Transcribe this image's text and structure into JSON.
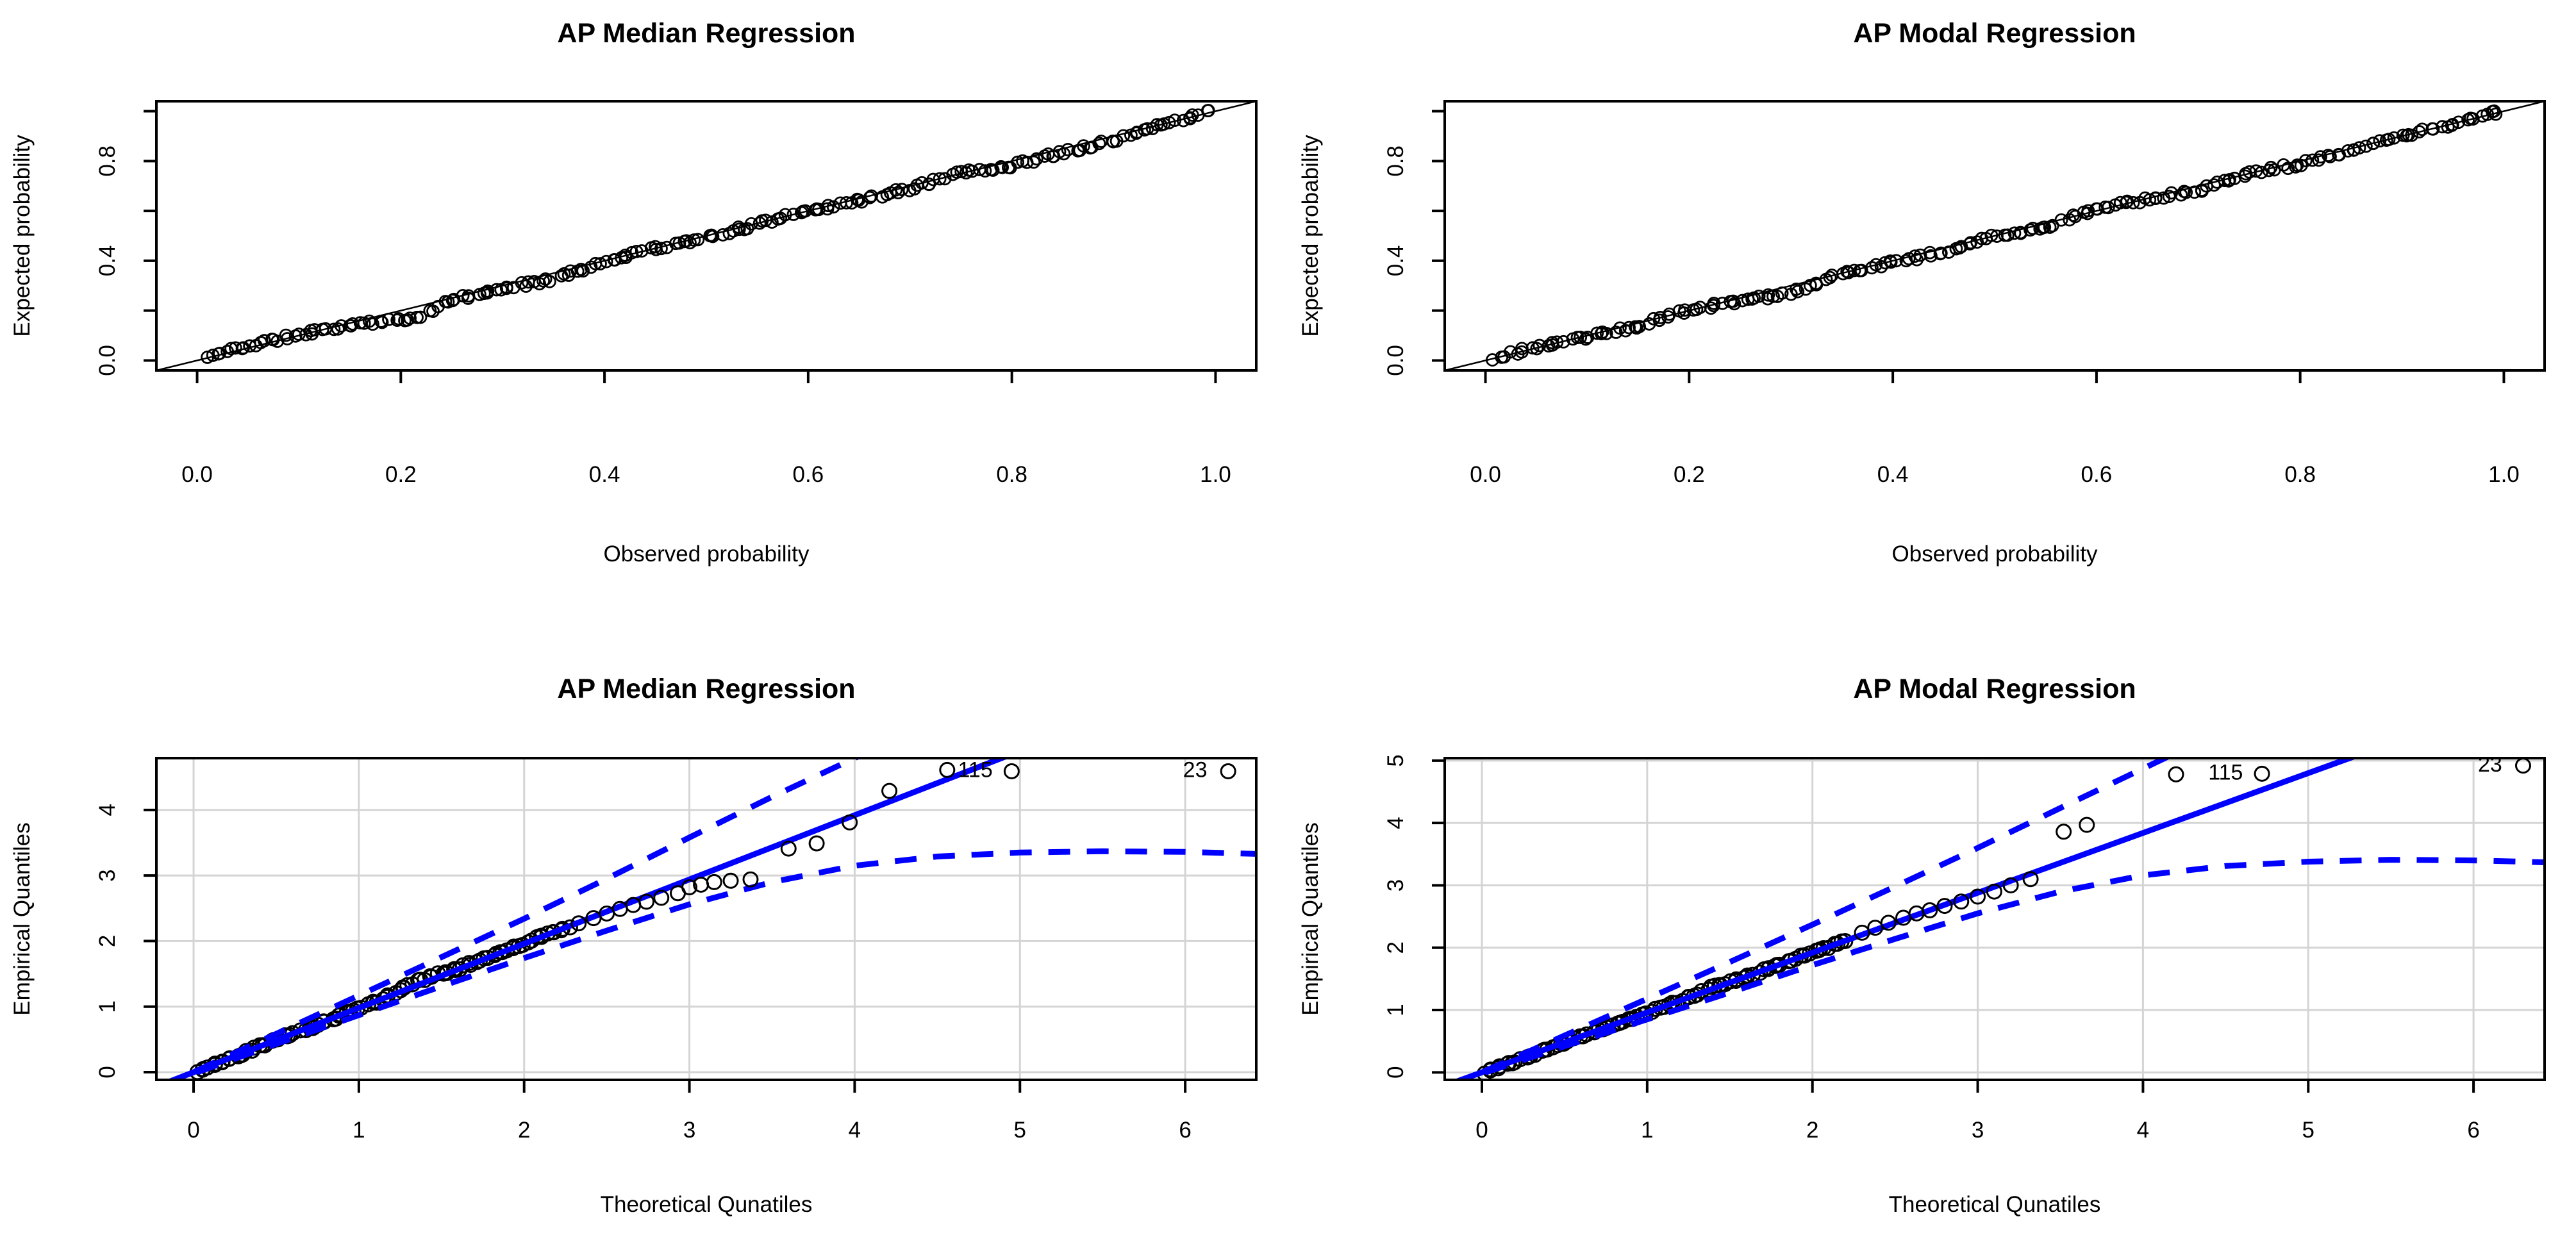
{
  "figure": {
    "background": "#ffffff",
    "description": "2x2 panel of R base-graphics diagnostic plots: top row P-P plots, bottom row Q-Q plots with confidence envelopes"
  },
  "colors": {
    "black": "#000000",
    "accent_blue": "#0000ff",
    "grid_gray": "#d4d4d4",
    "background": "#ffffff"
  },
  "chart_data": [
    {
      "id": "pp-median",
      "kind": "pp",
      "type": "scatter",
      "title": "AP Median Regression",
      "xlabel": "Observed probability",
      "ylabel": "Expected probability",
      "xlim": [
        -0.04,
        1.04
      ],
      "ylim": [
        -0.04,
        1.04
      ],
      "grid": false,
      "xticks": [
        {
          "v": 0,
          "label": "0.0"
        },
        {
          "v": 0.2,
          "label": "0.2"
        },
        {
          "v": 0.4,
          "label": "0.4"
        },
        {
          "v": 0.6,
          "label": "0.6"
        },
        {
          "v": 0.8,
          "label": "0.8"
        },
        {
          "v": 1,
          "label": "1.0"
        }
      ],
      "yticks": [
        {
          "v": 0,
          "label": "0.0"
        },
        {
          "v": 0.2,
          "label": ""
        },
        {
          "v": 0.4,
          "label": "0.4"
        },
        {
          "v": 0.6,
          "label": ""
        },
        {
          "v": 0.8,
          "label": "0.8"
        },
        {
          "v": 1,
          "label": ""
        }
      ],
      "ref_line": {
        "pts": [
          [
            -0.04,
            -0.04
          ],
          [
            1.04,
            1.04
          ]
        ],
        "color": "#000000",
        "width": 2.5
      },
      "marker": {
        "r": 9,
        "stroke": 2.8
      },
      "band": {
        "n": 210,
        "seed": 11,
        "jitter_y": 0.009,
        "anchors": [
          [
            0.01,
            0.012
          ],
          [
            0.04,
            0.05
          ],
          [
            0.09,
            0.095
          ],
          [
            0.13,
            0.13
          ],
          [
            0.17,
            0.152
          ],
          [
            0.21,
            0.163
          ],
          [
            0.25,
            0.24
          ],
          [
            0.3,
            0.29
          ],
          [
            0.35,
            0.327
          ],
          [
            0.4,
            0.397
          ],
          [
            0.45,
            0.452
          ],
          [
            0.5,
            0.49
          ],
          [
            0.55,
            0.547
          ],
          [
            0.6,
            0.603
          ],
          [
            0.65,
            0.64
          ],
          [
            0.7,
            0.69
          ],
          [
            0.75,
            0.752
          ],
          [
            0.8,
            0.782
          ],
          [
            0.85,
            0.835
          ],
          [
            0.9,
            0.885
          ],
          [
            0.95,
            0.947
          ],
          [
            0.995,
            0.998
          ]
        ]
      },
      "points": [],
      "lines": [],
      "labeled_points": []
    },
    {
      "id": "pp-modal",
      "kind": "pp",
      "type": "scatter",
      "title": "AP Modal Regression",
      "xlabel": "Observed probability",
      "ylabel": "Expected probability",
      "xlim": [
        -0.04,
        1.04
      ],
      "ylim": [
        -0.04,
        1.04
      ],
      "grid": false,
      "xticks": [
        {
          "v": 0,
          "label": "0.0"
        },
        {
          "v": 0.2,
          "label": "0.2"
        },
        {
          "v": 0.4,
          "label": "0.4"
        },
        {
          "v": 0.6,
          "label": "0.6"
        },
        {
          "v": 0.8,
          "label": "0.8"
        },
        {
          "v": 1,
          "label": "1.0"
        }
      ],
      "yticks": [
        {
          "v": 0,
          "label": "0.0"
        },
        {
          "v": 0.2,
          "label": ""
        },
        {
          "v": 0.4,
          "label": "0.4"
        },
        {
          "v": 0.6,
          "label": ""
        },
        {
          "v": 0.8,
          "label": "0.8"
        },
        {
          "v": 1,
          "label": ""
        }
      ],
      "ref_line": {
        "pts": [
          [
            -0.04,
            -0.04
          ],
          [
            1.04,
            1.04
          ]
        ],
        "color": "#000000",
        "width": 2.5
      },
      "marker": {
        "r": 9,
        "stroke": 2.8
      },
      "band": {
        "n": 205,
        "seed": 23,
        "jitter_y": 0.009,
        "anchors": [
          [
            0.01,
            0.01
          ],
          [
            0.05,
            0.055
          ],
          [
            0.1,
            0.092
          ],
          [
            0.15,
            0.14
          ],
          [
            0.2,
            0.205
          ],
          [
            0.25,
            0.237
          ],
          [
            0.3,
            0.27
          ],
          [
            0.35,
            0.352
          ],
          [
            0.4,
            0.392
          ],
          [
            0.45,
            0.437
          ],
          [
            0.5,
            0.5
          ],
          [
            0.55,
            0.537
          ],
          [
            0.6,
            0.607
          ],
          [
            0.65,
            0.648
          ],
          [
            0.7,
            0.682
          ],
          [
            0.75,
            0.752
          ],
          [
            0.8,
            0.787
          ],
          [
            0.85,
            0.842
          ],
          [
            0.9,
            0.9
          ],
          [
            0.95,
            0.95
          ],
          [
            0.995,
            0.997
          ]
        ]
      },
      "points": [],
      "lines": [],
      "labeled_points": []
    },
    {
      "id": "qq-median",
      "kind": "qq",
      "type": "scatter",
      "title": "AP Median Regression",
      "xlabel": "Theoretical Qunatiles",
      "ylabel": "Empirical Quantiles",
      "xlim": [
        -0.225,
        6.43
      ],
      "ylim": [
        -0.117,
        4.79
      ],
      "grid": true,
      "xticks": [
        {
          "v": 0,
          "label": "0"
        },
        {
          "v": 1,
          "label": "1"
        },
        {
          "v": 2,
          "label": "2"
        },
        {
          "v": 3,
          "label": "3"
        },
        {
          "v": 4,
          "label": "4"
        },
        {
          "v": 5,
          "label": "5"
        },
        {
          "v": 6,
          "label": "6"
        }
      ],
      "yticks": [
        {
          "v": 0,
          "label": "0"
        },
        {
          "v": 1,
          "label": "1"
        },
        {
          "v": 2,
          "label": "2"
        },
        {
          "v": 3,
          "label": "3"
        },
        {
          "v": 4,
          "label": "4"
        }
      ],
      "marker": {
        "r": 11,
        "stroke": 3
      },
      "band": {
        "n": 95,
        "seed": 42,
        "jitter_y": 0.022,
        "anchors": [
          [
            0.02,
            0.0
          ],
          [
            0.25,
            0.24
          ],
          [
            0.5,
            0.5
          ],
          [
            0.75,
            0.72
          ],
          [
            1.0,
            0.97
          ],
          [
            1.15,
            1.12
          ],
          [
            1.3,
            1.33
          ],
          [
            1.45,
            1.47
          ],
          [
            1.6,
            1.58
          ],
          [
            1.8,
            1.77
          ],
          [
            2.0,
            1.97
          ],
          [
            2.26,
            2.21
          ]
        ]
      },
      "points": [
        [
          2.33,
          2.27
        ],
        [
          2.42,
          2.35
        ],
        [
          2.5,
          2.42
        ],
        [
          2.58,
          2.49
        ],
        [
          2.66,
          2.55
        ],
        [
          2.74,
          2.6
        ],
        [
          2.83,
          2.66
        ],
        [
          2.93,
          2.73
        ],
        [
          3.0,
          2.82
        ],
        [
          3.07,
          2.86
        ],
        [
          3.15,
          2.9
        ],
        [
          3.25,
          2.92
        ],
        [
          3.37,
          2.94
        ],
        [
          3.6,
          3.41
        ],
        [
          3.77,
          3.49
        ],
        [
          3.97,
          3.81
        ],
        [
          4.21,
          4.29
        ],
        [
          4.56,
          4.61
        ]
      ],
      "lines": [
        {
          "style": "dashed",
          "color": "#0000ff",
          "width": 9,
          "pts": [
            [
              -0.2,
              -0.23
            ],
            [
              0,
              0.0
            ],
            [
              0.5,
              0.585
            ],
            [
              1,
              1.17
            ],
            [
              1.5,
              1.755
            ],
            [
              2,
              2.34
            ],
            [
              2.5,
              2.95
            ],
            [
              3,
              3.58
            ],
            [
              3.5,
              4.2
            ],
            [
              4.05,
              4.85
            ]
          ]
        },
        {
          "style": "dashed",
          "color": "#0000ff",
          "width": 9,
          "pts": [
            [
              -0.2,
              -0.19
            ],
            [
              0,
              -0.02
            ],
            [
              0.5,
              0.43
            ],
            [
              1,
              0.87
            ],
            [
              1.5,
              1.31
            ],
            [
              2,
              1.74
            ],
            [
              2.5,
              2.16
            ],
            [
              3,
              2.56
            ],
            [
              3.5,
              2.9
            ],
            [
              4,
              3.15
            ],
            [
              4.5,
              3.29
            ],
            [
              5,
              3.35
            ],
            [
              5.5,
              3.37
            ],
            [
              6,
              3.36
            ],
            [
              6.43,
              3.33
            ]
          ]
        },
        {
          "style": "solid",
          "color": "#0000ff",
          "width": 9,
          "pts": [
            [
              -0.225,
              -0.221
            ],
            [
              4.95,
              4.851
            ]
          ]
        }
      ],
      "labeled_points": [
        {
          "label": "115",
          "tx": 4.73,
          "ty": 4.62,
          "cx": 4.95,
          "cy": 4.59
        },
        {
          "label": "23",
          "tx": 6.06,
          "ty": 4.62,
          "cx": 6.26,
          "cy": 4.59
        }
      ]
    },
    {
      "id": "qq-modal",
      "kind": "qq",
      "type": "scatter",
      "title": "AP Modal Regression",
      "xlabel": "Theoretical Qunatiles",
      "ylabel": "Empirical Quantiles",
      "xlim": [
        -0.225,
        6.43
      ],
      "ylim": [
        -0.12,
        5.04
      ],
      "grid": true,
      "xticks": [
        {
          "v": 0,
          "label": "0"
        },
        {
          "v": 1,
          "label": "1"
        },
        {
          "v": 2,
          "label": "2"
        },
        {
          "v": 3,
          "label": "3"
        },
        {
          "v": 4,
          "label": "4"
        },
        {
          "v": 5,
          "label": "5"
        },
        {
          "v": 6,
          "label": "6"
        }
      ],
      "yticks": [
        {
          "v": 0,
          "label": "0"
        },
        {
          "v": 1,
          "label": "1"
        },
        {
          "v": 2,
          "label": "2"
        },
        {
          "v": 3,
          "label": "3"
        },
        {
          "v": 4,
          "label": "4"
        },
        {
          "v": 5,
          "label": "5"
        }
      ],
      "marker": {
        "r": 11,
        "stroke": 3
      },
      "band": {
        "n": 92,
        "seed": 77,
        "jitter_y": 0.02,
        "anchors": [
          [
            0.02,
            0.0
          ],
          [
            0.25,
            0.23
          ],
          [
            0.5,
            0.48
          ],
          [
            0.75,
            0.71
          ],
          [
            1.0,
            0.96
          ],
          [
            1.2,
            1.15
          ],
          [
            1.4,
            1.37
          ],
          [
            1.6,
            1.53
          ],
          [
            1.8,
            1.73
          ],
          [
            2.0,
            1.92
          ],
          [
            2.2,
            2.11
          ]
        ]
      },
      "points": [
        [
          2.3,
          2.24
        ],
        [
          2.38,
          2.32
        ],
        [
          2.46,
          2.4
        ],
        [
          2.55,
          2.48
        ],
        [
          2.63,
          2.55
        ],
        [
          2.71,
          2.6
        ],
        [
          2.8,
          2.67
        ],
        [
          2.9,
          2.74
        ],
        [
          3.0,
          2.82
        ],
        [
          3.1,
          2.9
        ],
        [
          3.2,
          3.0
        ],
        [
          3.32,
          3.1
        ],
        [
          3.52,
          3.86
        ],
        [
          3.66,
          3.97
        ],
        [
          4.2,
          4.78
        ]
      ],
      "lines": [
        {
          "style": "dashed",
          "color": "#0000ff",
          "width": 9,
          "pts": [
            [
              -0.2,
              -0.23
            ],
            [
              0,
              0.0
            ],
            [
              0.5,
              0.59
            ],
            [
              1,
              1.18
            ],
            [
              1.5,
              1.77
            ],
            [
              2,
              2.37
            ],
            [
              2.5,
              2.98
            ],
            [
              3,
              3.6
            ],
            [
              3.5,
              4.24
            ],
            [
              4.18,
              5.1
            ]
          ]
        },
        {
          "style": "dashed",
          "color": "#0000ff",
          "width": 9,
          "pts": [
            [
              -0.2,
              -0.19
            ],
            [
              0,
              -0.02
            ],
            [
              0.5,
              0.42
            ],
            [
              1,
              0.85
            ],
            [
              1.5,
              1.28
            ],
            [
              2,
              1.72
            ],
            [
              2.5,
              2.14
            ],
            [
              3,
              2.55
            ],
            [
              3.5,
              2.9
            ],
            [
              4,
              3.16
            ],
            [
              4.5,
              3.31
            ],
            [
              5,
              3.38
            ],
            [
              5.5,
              3.41
            ],
            [
              6,
              3.4
            ],
            [
              6.43,
              3.37
            ]
          ]
        },
        {
          "style": "solid",
          "color": "#0000ff",
          "width": 9,
          "pts": [
            [
              -0.225,
              -0.216
            ],
            [
              5.4,
              5.184
            ]
          ]
        }
      ],
      "labeled_points": [
        {
          "label": "115",
          "tx": 4.5,
          "ty": 4.82,
          "cx": 4.72,
          "cy": 4.79
        },
        {
          "label": "23",
          "tx": 6.1,
          "ty": 4.95,
          "cx": 6.3,
          "cy": 4.92
        }
      ]
    }
  ]
}
